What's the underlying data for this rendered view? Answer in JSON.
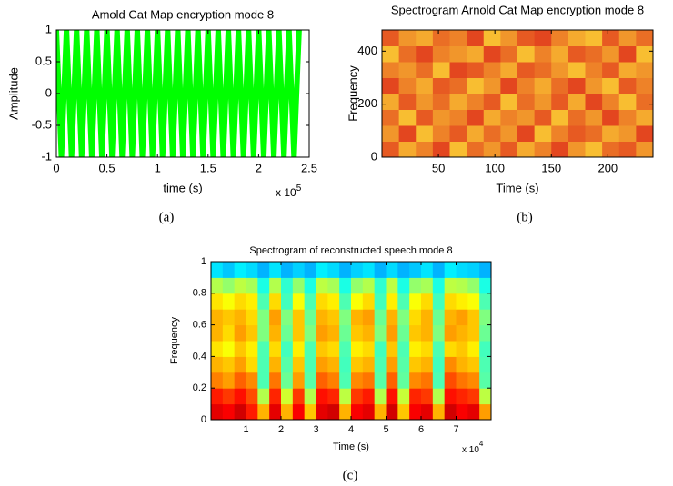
{
  "chart_data": [
    {
      "type": "line",
      "title": "Amold Cat Map encryption mode 8",
      "x_label": "time (s)",
      "y_label": "Amplitude",
      "x_multiplier": "x 10",
      "x_exponent": "5",
      "panel_label": "(a)",
      "color": "#00ff00",
      "x": [
        0,
        0.05,
        0.1,
        0.15,
        0.2,
        0.25,
        0.3,
        0.35,
        0.4,
        0.45,
        0.5,
        0.55,
        0.6,
        0.65,
        0.7,
        0.75,
        0.8,
        0.85,
        0.9,
        0.95,
        1,
        1.05,
        1.1,
        1.15,
        1.2,
        1.25,
        1.3,
        1.35,
        1.4,
        1.45,
        1.5,
        1.55,
        1.6,
        1.65,
        1.7,
        1.75,
        1.8,
        1.85,
        1.9,
        1.95,
        2,
        2.05,
        2.1,
        2.15,
        2.2,
        2.25,
        2.3,
        2.35,
        2.4
      ],
      "values": [
        1,
        -1,
        1,
        -1,
        1,
        -1,
        1,
        -1,
        1,
        -1,
        1,
        -1,
        1,
        -1,
        1,
        -1,
        1,
        -1,
        1,
        -1,
        1,
        -1,
        1,
        -1,
        1,
        -1,
        1,
        -1,
        1,
        -1,
        1,
        -1,
        1,
        -1,
        1,
        -1,
        1,
        -1,
        1,
        -1,
        1,
        -1,
        1,
        -1,
        1,
        -1,
        1,
        -1,
        1
      ],
      "xlim": [
        0,
        2.5
      ],
      "xticks": [
        0,
        0.5,
        1,
        1.5,
        2,
        2.5
      ],
      "ylim": [
        -1,
        1
      ],
      "yticks": [
        -1,
        -0.5,
        0,
        0.5,
        1
      ]
    },
    {
      "type": "heatmap",
      "title": "Spectrogram Arnold Cat Map encryption mode 8",
      "x_label": "Time (s)",
      "y_label": "Frequency",
      "panel_label": "(b)",
      "colormap": "autumn",
      "z": [
        [
          0.3,
          0.7,
          0.5,
          0.2,
          0.8,
          0.4,
          0.6,
          0.3,
          0.7,
          0.5,
          0.2,
          0.6,
          0.8,
          0.4,
          0.3,
          0.6
        ],
        [
          0.6,
          0.2,
          0.8,
          0.5,
          0.3,
          0.7,
          0.4,
          0.6,
          0.2,
          0.8,
          0.5,
          0.3,
          0.4,
          0.7,
          0.6,
          0.2
        ],
        [
          0.4,
          0.8,
          0.3,
          0.6,
          0.5,
          0.2,
          0.7,
          0.5,
          0.6,
          0.3,
          0.8,
          0.4,
          0.6,
          0.2,
          0.5,
          0.7
        ],
        [
          0.7,
          0.3,
          0.6,
          0.4,
          0.7,
          0.5,
          0.3,
          0.8,
          0.4,
          0.6,
          0.3,
          0.7,
          0.2,
          0.5,
          0.8,
          0.4
        ],
        [
          0.2,
          0.5,
          0.7,
          0.3,
          0.4,
          0.8,
          0.6,
          0.2,
          0.5,
          0.7,
          0.4,
          0.2,
          0.6,
          0.8,
          0.3,
          0.5
        ],
        [
          0.5,
          0.6,
          0.4,
          0.8,
          0.2,
          0.3,
          0.5,
          0.7,
          0.3,
          0.4,
          0.6,
          0.8,
          0.5,
          0.3,
          0.7,
          0.6
        ],
        [
          0.8,
          0.4,
          0.2,
          0.5,
          0.6,
          0.7,
          0.2,
          0.4,
          0.8,
          0.5,
          0.7,
          0.3,
          0.4,
          0.6,
          0.2,
          0.8
        ],
        [
          0.3,
          0.6,
          0.7,
          0.4,
          0.5,
          0.2,
          0.8,
          0.6,
          0.3,
          0.2,
          0.5,
          0.7,
          0.8,
          0.3,
          0.6,
          0.4
        ]
      ],
      "xlim": [
        0,
        240
      ],
      "xticks": [
        50,
        100,
        150,
        200
      ],
      "ylim": [
        0,
        480
      ],
      "yticks": [
        0,
        200,
        400
      ]
    },
    {
      "type": "heatmap",
      "title": "Spectrogram of reconstructed speech mode 8",
      "x_label": "Time (s)",
      "y_label": "Frequency",
      "x_multiplier": "x 10",
      "x_exponent": "4",
      "panel_label": "(c)",
      "colormap": "jet",
      "z": [
        [
          0.9,
          0.88,
          0.92,
          0.85,
          0.7,
          0.9,
          0.7,
          0.88,
          0.68,
          0.9,
          0.92,
          0.7,
          0.88,
          0.9,
          0.7,
          0.92,
          0.68,
          0.88,
          0.9,
          0.7,
          0.92,
          0.88,
          0.9,
          0.72
        ],
        [
          0.85,
          0.82,
          0.86,
          0.8,
          0.55,
          0.84,
          0.58,
          0.82,
          0.55,
          0.86,
          0.84,
          0.56,
          0.82,
          0.85,
          0.55,
          0.86,
          0.57,
          0.84,
          0.82,
          0.55,
          0.86,
          0.84,
          0.82,
          0.56
        ],
        [
          0.75,
          0.72,
          0.78,
          0.74,
          0.45,
          0.76,
          0.48,
          0.72,
          0.46,
          0.78,
          0.75,
          0.45,
          0.74,
          0.76,
          0.46,
          0.78,
          0.47,
          0.74,
          0.76,
          0.45,
          0.8,
          0.76,
          0.74,
          0.46
        ],
        [
          0.7,
          0.68,
          0.72,
          0.66,
          0.45,
          0.7,
          0.46,
          0.68,
          0.45,
          0.72,
          0.7,
          0.44,
          0.68,
          0.7,
          0.45,
          0.72,
          0.46,
          0.68,
          0.7,
          0.44,
          0.74,
          0.7,
          0.68,
          0.45
        ],
        [
          0.65,
          0.62,
          0.68,
          0.64,
          0.45,
          0.66,
          0.44,
          0.64,
          0.45,
          0.68,
          0.66,
          0.45,
          0.64,
          0.66,
          0.44,
          0.68,
          0.45,
          0.64,
          0.66,
          0.45,
          0.66,
          0.68,
          0.64,
          0.44
        ],
        [
          0.7,
          0.66,
          0.72,
          0.68,
          0.5,
          0.7,
          0.48,
          0.68,
          0.5,
          0.72,
          0.7,
          0.48,
          0.68,
          0.7,
          0.5,
          0.72,
          0.48,
          0.68,
          0.7,
          0.5,
          0.72,
          0.7,
          0.68,
          0.48
        ],
        [
          0.7,
          0.68,
          0.7,
          0.66,
          0.5,
          0.72,
          0.5,
          0.68,
          0.48,
          0.7,
          0.68,
          0.5,
          0.7,
          0.72,
          0.48,
          0.7,
          0.5,
          0.66,
          0.7,
          0.48,
          0.7,
          0.72,
          0.68,
          0.5
        ],
        [
          0.65,
          0.62,
          0.66,
          0.64,
          0.45,
          0.66,
          0.44,
          0.62,
          0.45,
          0.66,
          0.64,
          0.45,
          0.62,
          0.66,
          0.44,
          0.64,
          0.45,
          0.62,
          0.66,
          0.44,
          0.66,
          0.64,
          0.62,
          0.45
        ],
        [
          0.55,
          0.52,
          0.56,
          0.54,
          0.4,
          0.55,
          0.42,
          0.52,
          0.4,
          0.56,
          0.54,
          0.4,
          0.52,
          0.55,
          0.42,
          0.56,
          0.4,
          0.52,
          0.54,
          0.4,
          0.56,
          0.55,
          0.52,
          0.4
        ],
        [
          0.35,
          0.32,
          0.36,
          0.34,
          0.3,
          0.35,
          0.3,
          0.33,
          0.3,
          0.36,
          0.34,
          0.3,
          0.33,
          0.35,
          0.3,
          0.34,
          0.3,
          0.32,
          0.35,
          0.3,
          0.36,
          0.34,
          0.33,
          0.3
        ]
      ],
      "xlim": [
        0,
        8
      ],
      "xticks": [
        1,
        2,
        3,
        4,
        5,
        6,
        7
      ],
      "ylim": [
        0,
        1
      ],
      "yticks": [
        0,
        0.2,
        0.4,
        0.6,
        0.8,
        1
      ]
    }
  ]
}
